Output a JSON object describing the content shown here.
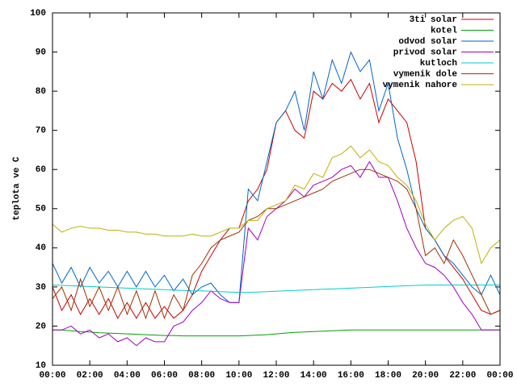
{
  "chart_data": {
    "type": "line",
    "ylabel": "teplota ve C",
    "x": [
      0,
      0.5,
      1,
      1.5,
      2,
      2.5,
      3,
      3.5,
      4,
      4.5,
      5,
      5.5,
      6,
      6.5,
      7,
      7.5,
      8,
      8.5,
      9,
      9.5,
      10,
      10.5,
      11,
      11.5,
      12,
      12.5,
      13,
      13.5,
      14,
      14.5,
      15,
      15.5,
      16,
      16.5,
      17,
      17.5,
      18,
      18.5,
      19,
      19.5,
      20,
      20.5,
      21,
      21.5,
      22,
      22.5,
      23,
      23.5,
      24
    ],
    "xlim": [
      0,
      24
    ],
    "xticks": [
      {
        "value": 0,
        "label": "00:00"
      },
      {
        "value": 2,
        "label": "02:00"
      },
      {
        "value": 4,
        "label": "04:00"
      },
      {
        "value": 6,
        "label": "06:00"
      },
      {
        "value": 8,
        "label": "08:00"
      },
      {
        "value": 10,
        "label": "10:00"
      },
      {
        "value": 12,
        "label": "12:00"
      },
      {
        "value": 14,
        "label": "14:00"
      },
      {
        "value": 16,
        "label": "16:00"
      },
      {
        "value": 18,
        "label": "18:00"
      },
      {
        "value": 20,
        "label": "20:00"
      },
      {
        "value": 22,
        "label": "22:00"
      },
      {
        "value": 24,
        "label": "00:00"
      }
    ],
    "ylim": [
      10,
      100
    ],
    "yticks": [
      10,
      20,
      30,
      40,
      50,
      60,
      70,
      80,
      90,
      100
    ],
    "legend": "top-right",
    "series": [
      {
        "name": "3ti solar",
        "color": "#cc0000",
        "values": [
          30,
          24,
          28,
          23,
          27,
          23,
          27,
          22,
          26,
          22,
          26,
          22,
          25,
          22,
          24,
          28,
          34,
          38,
          42,
          45,
          45,
          52,
          55,
          60,
          72,
          75,
          70,
          68,
          80,
          78,
          82,
          80,
          83,
          78,
          82,
          72,
          78,
          75,
          72,
          62,
          45,
          42,
          38,
          35,
          32,
          28,
          24,
          23,
          24
        ]
      },
      {
        "name": "kotel",
        "color": "#00a000",
        "values": [
          19,
          19,
          18.8,
          18.6,
          18.5,
          18.3,
          18.2,
          18.1,
          18,
          17.9,
          17.8,
          17.7,
          17.6,
          17.6,
          17.5,
          17.5,
          17.5,
          17.5,
          17.5,
          17.5,
          17.5,
          17.6,
          17.7,
          17.8,
          18,
          18.2,
          18.4,
          18.5,
          18.6,
          18.7,
          18.8,
          18.9,
          19,
          19,
          19,
          19,
          19,
          19,
          19,
          19,
          19,
          19,
          19,
          19,
          19,
          19,
          19,
          19,
          19
        ]
      },
      {
        "name": "odvod solar",
        "color": "#0066cc",
        "values": [
          36,
          31,
          35,
          30,
          35,
          31,
          34,
          30,
          34,
          30,
          34,
          30,
          33,
          29,
          32,
          28,
          30,
          31,
          28,
          26,
          26,
          55,
          52,
          62,
          72,
          75,
          80,
          70,
          85,
          78,
          88,
          82,
          90,
          85,
          88,
          75,
          82,
          68,
          60,
          50,
          45,
          42,
          38,
          36,
          33,
          30,
          28,
          33,
          28
        ]
      },
      {
        "name": "privod solar",
        "color": "#a000c0",
        "values": [
          19,
          19,
          20,
          18,
          19,
          17,
          18,
          16,
          17,
          15,
          17,
          16,
          16,
          20,
          21,
          24,
          26,
          29,
          27,
          26,
          26,
          45,
          42,
          48,
          50,
          52,
          55,
          53,
          56,
          57,
          58,
          60,
          61,
          58,
          62,
          58,
          58,
          52,
          45,
          40,
          36,
          35,
          33,
          30,
          26,
          23,
          19,
          19,
          19
        ]
      },
      {
        "name": "kutloch",
        "color": "#00cccc",
        "values": [
          30.5,
          30.4,
          30.3,
          30.2,
          30.1,
          30,
          29.9,
          29.8,
          29.7,
          29.6,
          29.5,
          29.4,
          29.3,
          29.2,
          29.1,
          29,
          29,
          28.9,
          28.8,
          28.7,
          28.6,
          28.6,
          28.7,
          28.8,
          28.9,
          29,
          29.1,
          29.2,
          29.3,
          29.4,
          29.5,
          29.6,
          29.7,
          29.8,
          29.9,
          30,
          30.1,
          30.2,
          30.3,
          30.4,
          30.5,
          30.5,
          30.5,
          30.5,
          30.5,
          30.5,
          30.5,
          30.5,
          30.5
        ]
      },
      {
        "name": "vymenik dole",
        "color": "#a03000",
        "values": [
          27,
          30,
          24,
          32,
          25,
          30,
          24,
          30,
          23,
          29,
          22,
          29,
          22,
          28,
          24,
          33,
          36,
          40,
          42,
          43,
          44,
          47,
          48,
          50,
          50,
          51,
          52,
          53,
          54,
          55,
          57,
          58,
          59,
          60,
          60,
          59,
          58,
          57,
          55,
          50,
          38,
          40,
          36,
          42,
          38,
          33,
          28,
          23,
          24
        ]
      },
      {
        "name": "vymenik nahore",
        "color": "#c0b000",
        "values": [
          46,
          44,
          45,
          45.5,
          45,
          45,
          44.5,
          44.5,
          44,
          44,
          43.5,
          43.5,
          43,
          43,
          43,
          43.5,
          43,
          43,
          44,
          45,
          45,
          47,
          47,
          50,
          51,
          52,
          56,
          55,
          59,
          58,
          63,
          64,
          66,
          63,
          65,
          62,
          61,
          58,
          56,
          52,
          46,
          42,
          45,
          47,
          48,
          45,
          36,
          40,
          42
        ]
      }
    ]
  }
}
